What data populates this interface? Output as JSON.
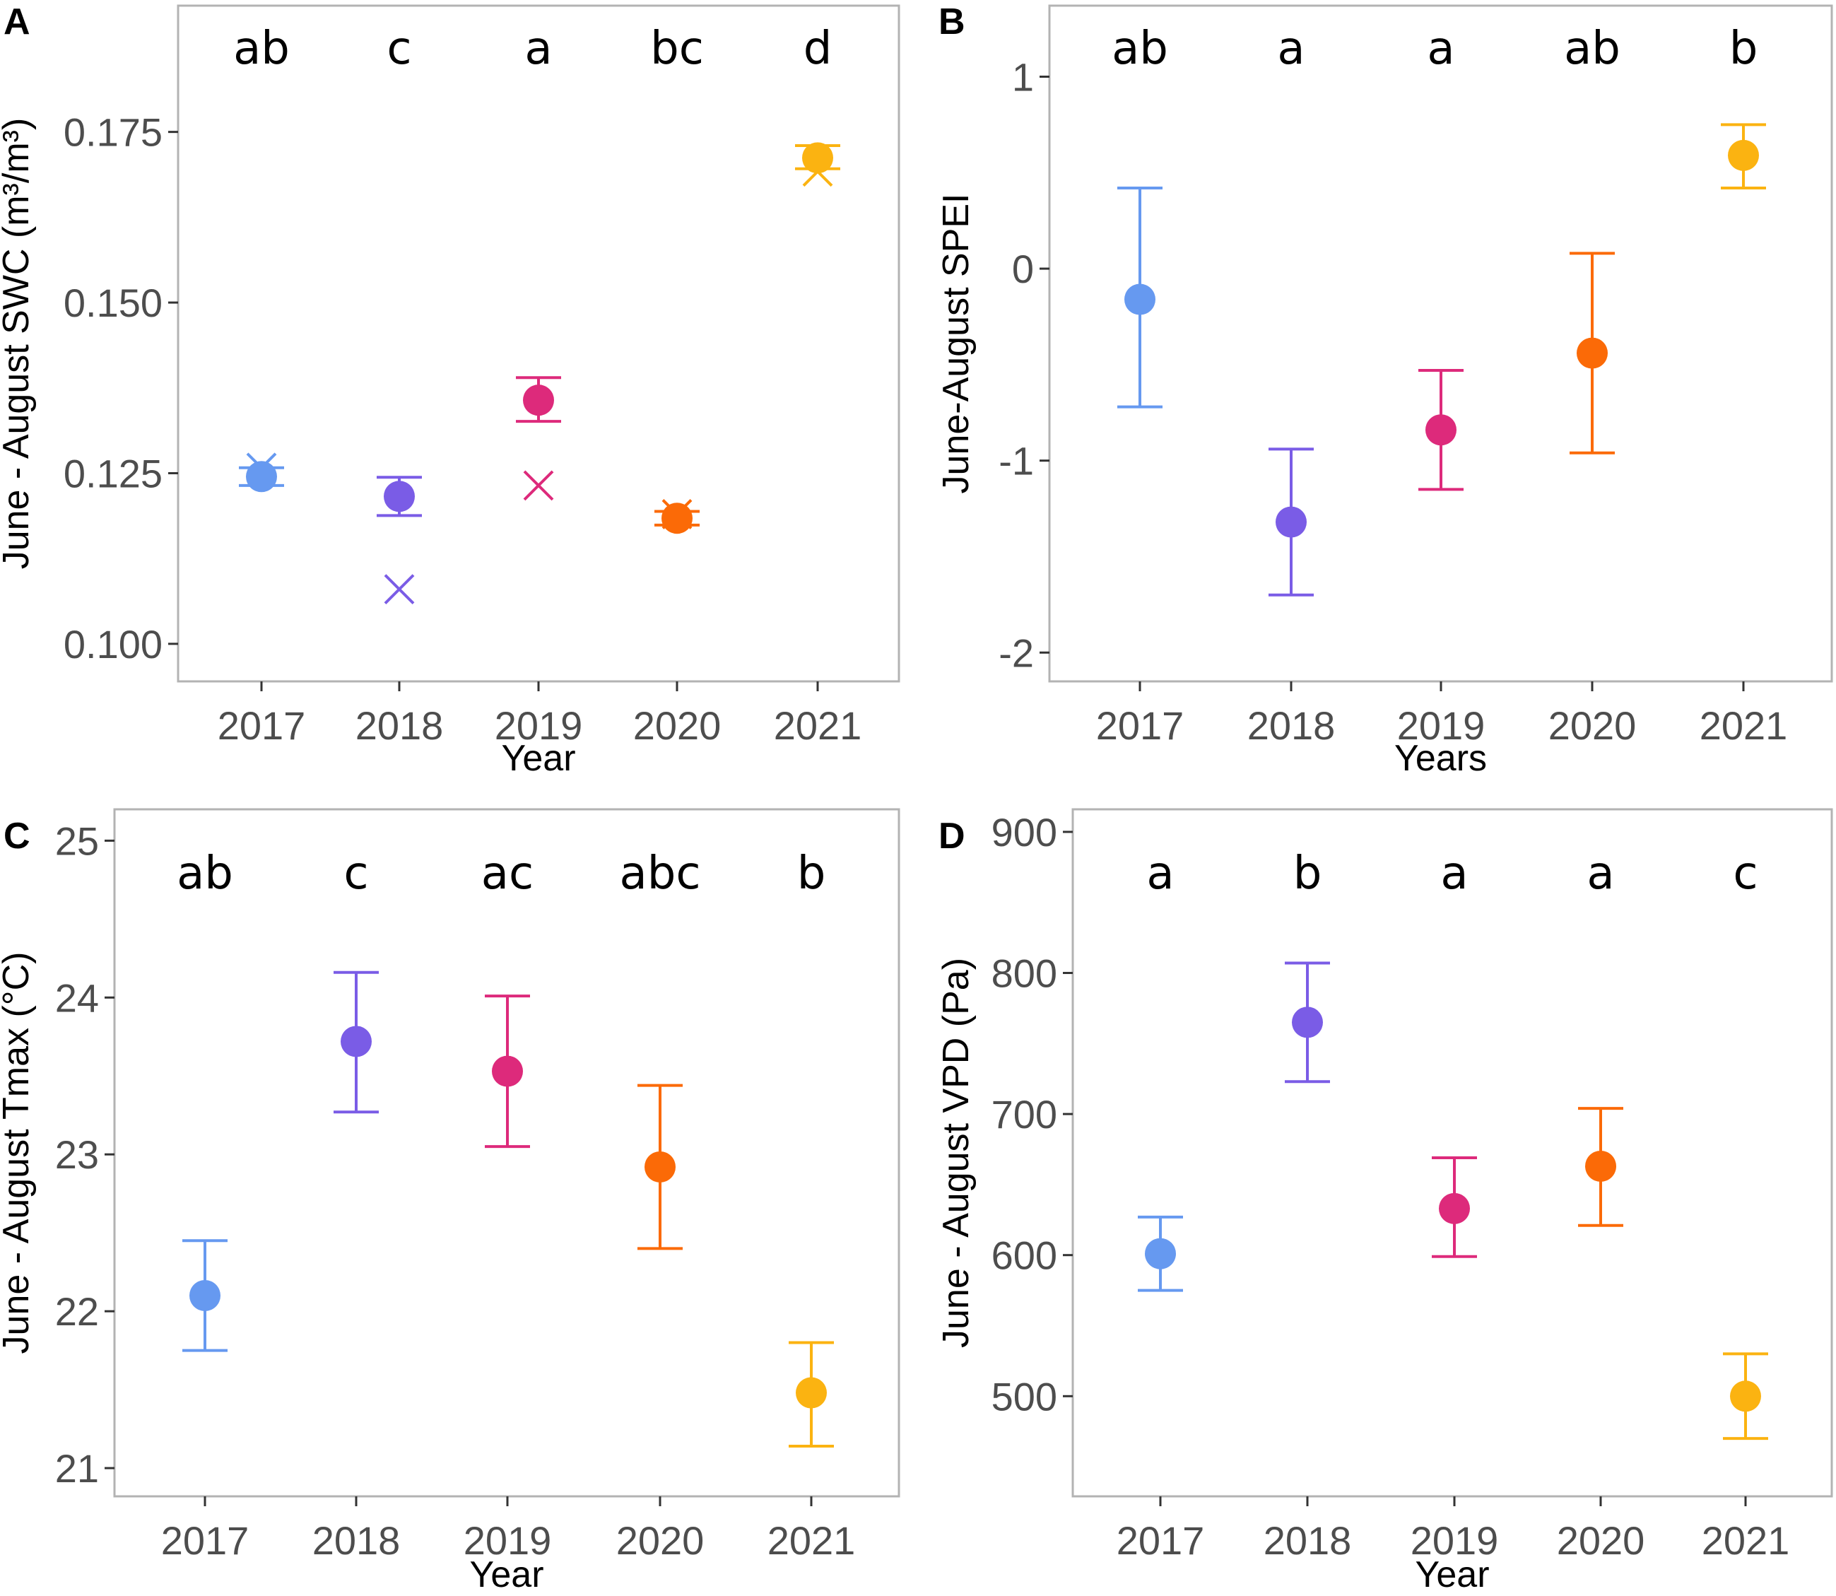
{
  "colors": {
    "2017": "#6699f0",
    "2018": "#7a5ce6",
    "2019": "#dd2a7b",
    "2020": "#fb6a07",
    "2021": "#fbb311"
  },
  "chart_data": [
    {
      "panel": "A",
      "type": "scatter",
      "title": "",
      "xlabel": "Year",
      "ylabel": "June - August SWC (m³/m³)",
      "categories": [
        "2017",
        "2018",
        "2019",
        "2020",
        "2021"
      ],
      "ylim": [
        0.0945,
        0.1935
      ],
      "yticks": [
        0.1,
        0.125,
        0.15,
        0.175
      ],
      "ytick_labels": [
        "0.100",
        "0.125",
        "0.150",
        "0.175"
      ],
      "letters": [
        "ab",
        "c",
        "a",
        "bc",
        "d"
      ],
      "mean": [
        0.1245,
        0.1216,
        0.1357,
        0.1184,
        0.1712
      ],
      "lower": [
        0.1232,
        0.1188,
        0.1326,
        0.1174,
        0.1696
      ],
      "upper": [
        0.1258,
        0.1244,
        0.139,
        0.1194,
        0.173
      ],
      "cross": [
        0.1258,
        0.108,
        0.1232,
        0.119,
        0.1692
      ]
    },
    {
      "panel": "B",
      "type": "scatter",
      "title": "",
      "xlabel": "Years",
      "ylabel": "June-August  SPEI",
      "categories": [
        "2017",
        "2018",
        "2019",
        "2020",
        "2021"
      ],
      "ylim": [
        -2.15,
        1.37
      ],
      "yticks": [
        -2,
        -1,
        0,
        1
      ],
      "ytick_labels": [
        "-2",
        "-1",
        "0",
        "1"
      ],
      "letters": [
        "ab",
        "a",
        "a",
        "ab",
        "b"
      ],
      "mean": [
        -0.16,
        -1.32,
        -0.84,
        -0.44,
        0.59
      ],
      "lower": [
        -0.72,
        -1.7,
        -1.15,
        -0.96,
        0.42
      ],
      "upper": [
        0.42,
        -0.94,
        -0.53,
        0.08,
        0.75
      ]
    },
    {
      "panel": "C",
      "type": "scatter",
      "title": "",
      "xlabel": "Year",
      "ylabel": "June - August Tmax (°C)",
      "categories": [
        "2017",
        "2018",
        "2019",
        "2020",
        "2021"
      ],
      "ylim": [
        20.82,
        25.2
      ],
      "yticks": [
        21,
        22,
        23,
        24,
        25
      ],
      "ytick_labels": [
        "21",
        "22",
        "23",
        "24",
        "25"
      ],
      "letters": [
        "ab",
        "c",
        "ac",
        "abc",
        "b"
      ],
      "mean": [
        22.1,
        23.72,
        23.53,
        22.92,
        21.48
      ],
      "lower": [
        21.75,
        23.27,
        23.05,
        22.4,
        21.14
      ],
      "upper": [
        22.45,
        24.16,
        24.01,
        23.44,
        21.8
      ]
    },
    {
      "panel": "D",
      "type": "scatter",
      "title": "",
      "xlabel": "Year",
      "ylabel": "June - August VPD (Pa)",
      "categories": [
        "2017",
        "2018",
        "2019",
        "2020",
        "2021"
      ],
      "ylim": [
        429,
        916
      ],
      "yticks": [
        500,
        600,
        700,
        800,
        900
      ],
      "ytick_labels": [
        "500",
        "600",
        "700",
        "800",
        "900"
      ],
      "letters": [
        "a",
        "b",
        "a",
        "a",
        "c"
      ],
      "mean": [
        601,
        765,
        633,
        663,
        500
      ],
      "lower": [
        575,
        723,
        599,
        621,
        470
      ],
      "upper": [
        627,
        807,
        669,
        704,
        530
      ]
    }
  ]
}
